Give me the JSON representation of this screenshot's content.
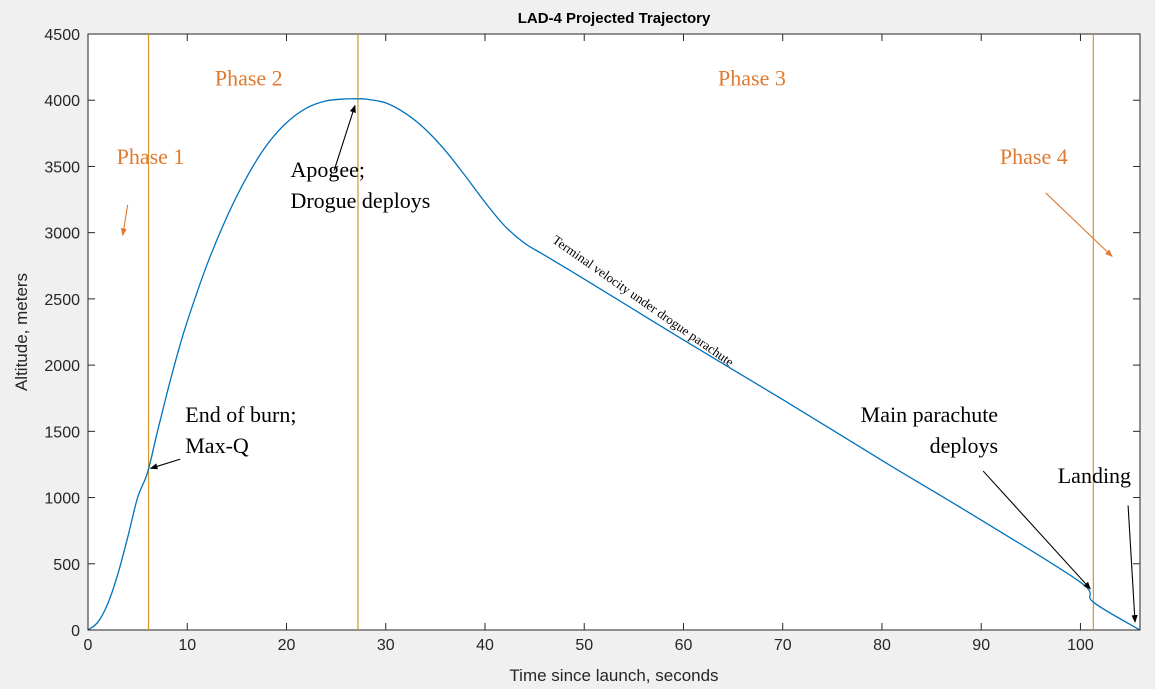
{
  "chart_data": {
    "type": "line",
    "title": "LAD-4 Projected Trajectory",
    "xlabel": "Time since launch, seconds",
    "ylabel": "Altitude, meters",
    "xlim": [
      0,
      106
    ],
    "ylim": [
      0,
      4500
    ],
    "xticks": [
      0,
      10,
      20,
      30,
      40,
      50,
      60,
      70,
      80,
      90,
      100
    ],
    "yticks": [
      0,
      500,
      1000,
      1500,
      2000,
      2500,
      3000,
      3500,
      4000,
      4500
    ],
    "grid": false,
    "series": [
      {
        "color": "#0072bd",
        "x": [
          0,
          1,
          2,
          3,
          4,
          5,
          6,
          7,
          8,
          9,
          10,
          12,
          14,
          16,
          18,
          20,
          22,
          24,
          26,
          27.3,
          28,
          30,
          32,
          34,
          36,
          38,
          40,
          42,
          44,
          46,
          50,
          60,
          70,
          80,
          90,
          100,
          101.3,
          106
        ],
        "y": [
          0,
          60,
          200,
          420,
          700,
          1000,
          1190,
          1500,
          1800,
          2080,
          2330,
          2760,
          3120,
          3420,
          3660,
          3830,
          3940,
          3995,
          4010,
          4010,
          4008,
          3980,
          3900,
          3780,
          3620,
          3430,
          3230,
          3050,
          2920,
          2830,
          2650,
          2190,
          1740,
          1280,
          830,
          360,
          210,
          0
        ]
      }
    ],
    "phase_lines": {
      "color": "#d9962a",
      "x": [
        6.1,
        27.2,
        101.3
      ]
    },
    "annotations": [
      {
        "id": "phase1",
        "lines": [
          "Phase 1"
        ],
        "color": "#e07a30",
        "x": 6.3,
        "y": 3520,
        "anchor": "middle",
        "size": 22
      },
      {
        "id": "phase2",
        "lines": [
          "Phase 2"
        ],
        "color": "#e07a30",
        "x": 16.2,
        "y": 4110,
        "anchor": "middle",
        "size": 22
      },
      {
        "id": "phase3",
        "lines": [
          "Phase 3"
        ],
        "color": "#e07a30",
        "x": 66.9,
        "y": 4110,
        "anchor": "middle",
        "size": 22
      },
      {
        "id": "phase4",
        "lines": [
          "Phase 4"
        ],
        "color": "#e07a30",
        "x": 95.3,
        "y": 3520,
        "anchor": "middle",
        "size": 22
      },
      {
        "id": "apogee",
        "lines": [
          "Apogee;",
          "Drogue deploys"
        ],
        "color": "#000000",
        "x": 20.4,
        "y": 3420,
        "anchor": "start",
        "size": 22
      },
      {
        "id": "burn",
        "lines": [
          "End of burn;",
          "Max-Q"
        ],
        "color": "#000000",
        "x": 9.8,
        "y": 1570,
        "anchor": "start",
        "size": 22
      },
      {
        "id": "main",
        "lines": [
          "Main parachute",
          "deploys"
        ],
        "color": "#000000",
        "x": 91.7,
        "y": 1570,
        "anchor": "end",
        "size": 22
      },
      {
        "id": "landing",
        "lines": [
          "Landing"
        ],
        "color": "#000000",
        "x": 105.1,
        "y": 1110,
        "anchor": "end",
        "size": 22
      }
    ],
    "rotated_label": {
      "text": "Terminal velocity under drogue parachute",
      "x": 46.7,
      "y": 2930,
      "angle": 35,
      "size": 13
    },
    "arrows": [
      {
        "color": "#e07a30",
        "from": [
          4.0,
          3210
        ],
        "to": [
          3.5,
          2980
        ]
      },
      {
        "color": "#e07a30",
        "from": [
          96.5,
          3300
        ],
        "to": [
          103.2,
          2820
        ]
      },
      {
        "color": "#000000",
        "from": [
          24.8,
          3470
        ],
        "to": [
          26.9,
          3960
        ]
      },
      {
        "color": "#000000",
        "from": [
          9.3,
          1290
        ],
        "to": [
          6.3,
          1220
        ]
      },
      {
        "color": "#000000",
        "from": [
          90.2,
          1200
        ],
        "to": [
          101.0,
          310
        ]
      },
      {
        "color": "#000000",
        "from": [
          104.8,
          940
        ],
        "to": [
          105.5,
          60
        ]
      }
    ]
  }
}
